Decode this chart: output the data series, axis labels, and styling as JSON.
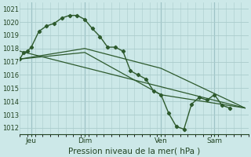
{
  "bg_color": "#cce8e8",
  "grid_color": "#aacccc",
  "line_color": "#2d5a2d",
  "xlabel": "Pression niveau de la mer( hPa )",
  "ylim": [
    1011.5,
    1021.5
  ],
  "xlim": [
    0,
    30
  ],
  "yticks": [
    1012,
    1013,
    1014,
    1015,
    1016,
    1017,
    1018,
    1019,
    1020,
    1021
  ],
  "day_labels": [
    "Jeu",
    "Dim",
    "Ven",
    "Sam"
  ],
  "day_positions": [
    1.5,
    8.5,
    18.5,
    25.5
  ],
  "vline_positions": [
    1.5,
    8.5,
    18.5,
    25.5
  ],
  "series1_x": [
    0,
    0.5,
    1.0,
    1.5,
    2.5,
    3.5,
    4.5,
    5.5,
    6.5,
    7.5,
    8.5,
    9.5,
    10.5,
    11.5,
    12.5,
    13.5,
    14.5,
    15.5,
    16.5,
    17.5,
    18.5,
    19.5,
    20.5,
    21.5,
    22.5,
    23.5,
    24.5,
    25.5,
    26.5,
    27.5
  ],
  "series1_y": [
    1017.2,
    1017.7,
    1017.8,
    1018.1,
    1019.3,
    1019.7,
    1019.9,
    1020.3,
    1020.5,
    1020.5,
    1020.2,
    1019.5,
    1018.9,
    1018.1,
    1018.1,
    1017.8,
    1016.3,
    1016.0,
    1015.7,
    1014.8,
    1014.5,
    1013.1,
    1012.1,
    1011.9,
    1013.8,
    1014.3,
    1014.1,
    1014.5,
    1013.7,
    1013.5
  ],
  "series2_x": [
    0,
    29.5
  ],
  "series2_y": [
    1017.8,
    1013.5
  ],
  "series3_x": [
    0,
    8.5,
    18.5,
    29.5
  ],
  "series3_y": [
    1017.2,
    1018.0,
    1016.5,
    1013.5
  ],
  "series4_x": [
    0,
    8.5,
    18.5,
    29.5
  ],
  "series4_y": [
    1017.2,
    1017.7,
    1014.5,
    1013.5
  ]
}
